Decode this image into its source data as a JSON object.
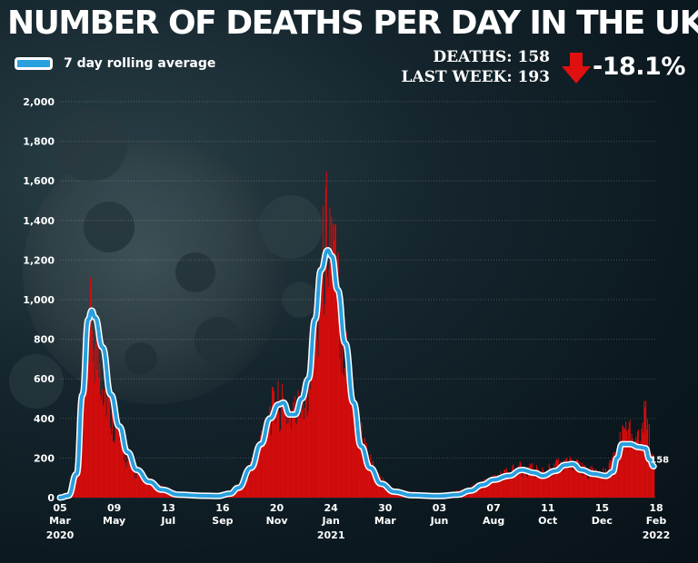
{
  "title": "NUMBER OF DEATHS PER DAY IN THE UK",
  "legend": {
    "label": "7 day rolling average",
    "color": "#2a9fde"
  },
  "stats": {
    "deaths_line": "DEATHS: 158",
    "last_week_line": "LAST WEEK: 193",
    "change": "-18.1%",
    "arrow_icon": "down-arrow-icon",
    "arrow_color": "#e01010"
  },
  "chart_data": {
    "type": "bar",
    "title": "NUMBER OF DEATHS PER DAY IN THE UK",
    "ylim": [
      0,
      2000
    ],
    "yticks": [
      0,
      200,
      400,
      600,
      800,
      1000,
      1200,
      1400,
      1600,
      1800,
      2000
    ],
    "ytick_labels": [
      "0",
      "200",
      "400",
      "600",
      "800",
      "1,000",
      "1,200",
      "1,400",
      "1,600",
      "1,800",
      "2,000"
    ],
    "grid": true,
    "legend_position": "top-left",
    "bar_color": "#d40c0c",
    "line_color": "#2a9fde",
    "x_tick_labels": [
      {
        "day": "05",
        "month": "Mar",
        "year": "2020"
      },
      {
        "day": "09",
        "month": "May",
        "year": ""
      },
      {
        "day": "13",
        "month": "Jul",
        "year": ""
      },
      {
        "day": "16",
        "month": "Sep",
        "year": ""
      },
      {
        "day": "20",
        "month": "Nov",
        "year": ""
      },
      {
        "day": "24",
        "month": "Jan",
        "year": "2021"
      },
      {
        "day": "30",
        "month": "Mar",
        "year": ""
      },
      {
        "day": "03",
        "month": "Jun",
        "year": ""
      },
      {
        "day": "07",
        "month": "Aug",
        "year": ""
      },
      {
        "day": "11",
        "month": "Oct",
        "year": ""
      },
      {
        "day": "15",
        "month": "Dec",
        "year": ""
      },
      {
        "day": "18",
        "month": "Feb",
        "year": "2022"
      }
    ],
    "series": [
      {
        "name": "7 day rolling average",
        "type": "line",
        "points": [
          [
            "2020-03-05",
            0
          ],
          [
            "2020-03-15",
            10
          ],
          [
            "2020-03-25",
            120
          ],
          [
            "2020-04-01",
            520
          ],
          [
            "2020-04-08",
            900
          ],
          [
            "2020-04-12",
            945
          ],
          [
            "2020-04-16",
            910
          ],
          [
            "2020-04-25",
            760
          ],
          [
            "2020-05-05",
            520
          ],
          [
            "2020-05-15",
            360
          ],
          [
            "2020-05-25",
            230
          ],
          [
            "2020-06-05",
            140
          ],
          [
            "2020-06-20",
            80
          ],
          [
            "2020-07-05",
            40
          ],
          [
            "2020-07-25",
            15
          ],
          [
            "2020-08-20",
            10
          ],
          [
            "2020-09-10",
            8
          ],
          [
            "2020-09-25",
            20
          ],
          [
            "2020-10-05",
            50
          ],
          [
            "2020-10-20",
            150
          ],
          [
            "2020-11-01",
            270
          ],
          [
            "2020-11-12",
            400
          ],
          [
            "2020-11-22",
            470
          ],
          [
            "2020-11-28",
            480
          ],
          [
            "2020-12-05",
            420
          ],
          [
            "2020-12-12",
            420
          ],
          [
            "2020-12-20",
            500
          ],
          [
            "2020-12-28",
            600
          ],
          [
            "2021-01-05",
            900
          ],
          [
            "2021-01-12",
            1150
          ],
          [
            "2021-01-20",
            1250
          ],
          [
            "2021-01-25",
            1220
          ],
          [
            "2021-02-01",
            1050
          ],
          [
            "2021-02-10",
            780
          ],
          [
            "2021-02-20",
            480
          ],
          [
            "2021-03-01",
            260
          ],
          [
            "2021-03-12",
            150
          ],
          [
            "2021-03-25",
            70
          ],
          [
            "2021-04-10",
            30
          ],
          [
            "2021-05-01",
            12
          ],
          [
            "2021-06-03",
            8
          ],
          [
            "2021-06-25",
            15
          ],
          [
            "2021-07-10",
            35
          ],
          [
            "2021-07-25",
            65
          ],
          [
            "2021-08-07",
            90
          ],
          [
            "2021-08-25",
            110
          ],
          [
            "2021-09-10",
            140
          ],
          [
            "2021-09-25",
            125
          ],
          [
            "2021-10-05",
            110
          ],
          [
            "2021-10-20",
            135
          ],
          [
            "2021-11-01",
            165
          ],
          [
            "2021-11-10",
            170
          ],
          [
            "2021-11-20",
            140
          ],
          [
            "2021-12-05",
            120
          ],
          [
            "2021-12-20",
            110
          ],
          [
            "2021-12-28",
            130
          ],
          [
            "2022-01-02",
            200
          ],
          [
            "2022-01-08",
            270
          ],
          [
            "2022-01-18",
            270
          ],
          [
            "2022-01-28",
            255
          ],
          [
            "2022-02-05",
            250
          ],
          [
            "2022-02-10",
            193
          ],
          [
            "2022-02-15",
            158
          ]
        ]
      }
    ],
    "bars_daily_envelope": [
      [
        "2020-03-05",
        0
      ],
      [
        "2020-03-20",
        40
      ],
      [
        "2020-03-30",
        420
      ],
      [
        "2020-04-05",
        1000
      ],
      [
        "2020-04-10",
        1120
      ],
      [
        "2020-04-15",
        1000
      ],
      [
        "2020-04-22",
        850
      ],
      [
        "2020-05-01",
        620
      ],
      [
        "2020-05-10",
        450
      ],
      [
        "2020-05-20",
        300
      ],
      [
        "2020-06-01",
        170
      ],
      [
        "2020-06-20",
        100
      ],
      [
        "2020-07-10",
        50
      ],
      [
        "2020-08-01",
        25
      ],
      [
        "2020-09-01",
        15
      ],
      [
        "2020-09-25",
        30
      ],
      [
        "2020-10-10",
        100
      ],
      [
        "2020-10-25",
        260
      ],
      [
        "2020-11-08",
        520
      ],
      [
        "2020-11-20",
        600
      ],
      [
        "2020-12-01",
        560
      ],
      [
        "2020-12-12",
        540
      ],
      [
        "2020-12-25",
        700
      ],
      [
        "2021-01-05",
        1100
      ],
      [
        "2021-01-15",
        1550
      ],
      [
        "2021-01-20",
        1820
      ],
      [
        "2021-01-28",
        1500
      ],
      [
        "2021-02-08",
        1000
      ],
      [
        "2021-02-20",
        600
      ],
      [
        "2021-03-05",
        320
      ],
      [
        "2021-03-20",
        130
      ],
      [
        "2021-04-10",
        45
      ],
      [
        "2021-06-03",
        15
      ],
      [
        "2021-07-10",
        60
      ],
      [
        "2021-08-07",
        120
      ],
      [
        "2021-09-10",
        190
      ],
      [
        "2021-10-05",
        160
      ],
      [
        "2021-11-01",
        230
      ],
      [
        "2021-11-20",
        180
      ],
      [
        "2021-12-20",
        150
      ],
      [
        "2022-01-05",
        340
      ],
      [
        "2022-01-12",
        440
      ],
      [
        "2022-01-25",
        380
      ],
      [
        "2022-02-05",
        540
      ],
      [
        "2022-02-12",
        280
      ],
      [
        "2022-02-15",
        200
      ]
    ],
    "end_label": "158"
  }
}
